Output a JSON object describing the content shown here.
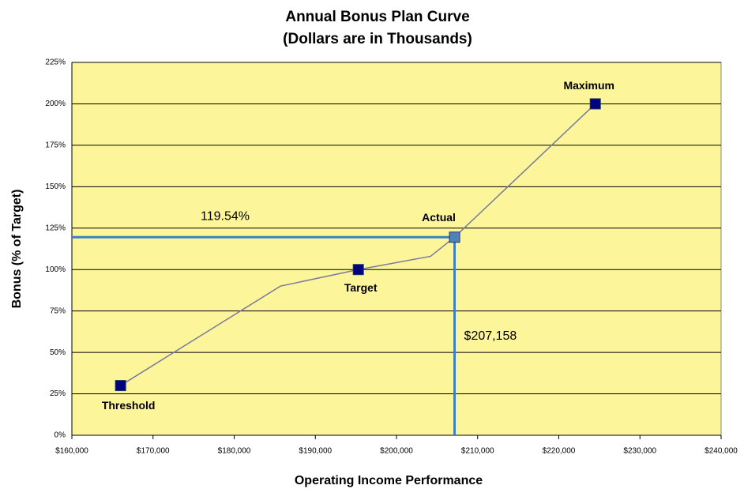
{
  "chart_data": {
    "type": "line",
    "title": "Annual Bonus Plan Curve",
    "subtitle": "(Dollars are in Thousands)",
    "x_label": "Operating Income Performance",
    "y_label": "Bonus (% of Target)",
    "x": [
      166000,
      185700,
      195300,
      204200,
      207158,
      224500
    ],
    "values": [
      30,
      90,
      100,
      108,
      119.54,
      200
    ],
    "color": "#7a7a9e",
    "marker_labels": [
      "Threshold",
      null,
      "Target",
      null,
      "Actual",
      "Maximum"
    ],
    "marker_colors": [
      "#000080",
      null,
      "#000080",
      null,
      "#4f81bd",
      "#000080"
    ],
    "reference": {
      "x": {
        "value": 207158,
        "label": "$207,158"
      },
      "y": {
        "value": 119.54,
        "label": "119.54%"
      },
      "color": "#3b7fc4"
    },
    "xlim": [
      160000,
      240000
    ],
    "xticks": [
      {
        "value": 160000,
        "label": "$160,000"
      },
      {
        "value": 170000,
        "label": "$170,000"
      },
      {
        "value": 180000,
        "label": "$180,000"
      },
      {
        "value": 190000,
        "label": "$190,000"
      },
      {
        "value": 200000,
        "label": "$200,000"
      },
      {
        "value": 210000,
        "label": "$210,000"
      },
      {
        "value": 220000,
        "label": "$220,000"
      },
      {
        "value": 230000,
        "label": "$230,000"
      },
      {
        "value": 240000,
        "label": "$240,000"
      }
    ],
    "ylim": [
      0,
      225
    ],
    "yticks": [
      {
        "value": 0,
        "label": "0%"
      },
      {
        "value": 25,
        "label": "25%"
      },
      {
        "value": 50,
        "label": "50%"
      },
      {
        "value": 75,
        "label": "75%"
      },
      {
        "value": 100,
        "label": "100%"
      },
      {
        "value": 125,
        "label": "125%"
      },
      {
        "value": 150,
        "label": "150%"
      },
      {
        "value": 175,
        "label": "175%"
      },
      {
        "value": 200,
        "label": "200%"
      },
      {
        "value": 225,
        "label": "225%"
      }
    ],
    "grid": true,
    "plot_background": "#fdf59a"
  }
}
